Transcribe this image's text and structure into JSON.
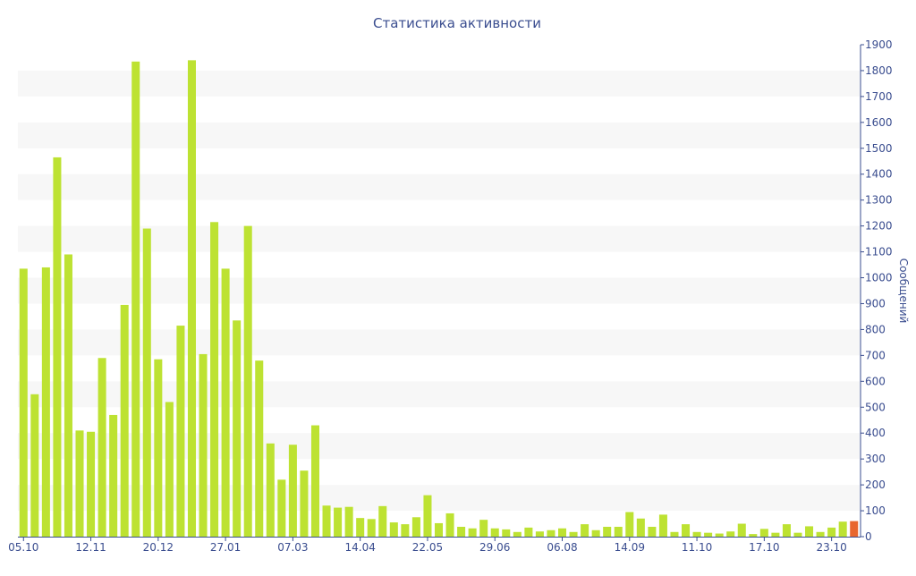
{
  "chart_data": {
    "type": "bar",
    "title": "Статистика активности",
    "xlabel": "",
    "ylabel": "Сообщений",
    "ylim": [
      0,
      1900
    ],
    "y_axis_side": "right",
    "y_ticks": [
      0,
      100,
      200,
      300,
      400,
      500,
      600,
      700,
      800,
      900,
      1000,
      1100,
      1200,
      1300,
      1400,
      1500,
      1600,
      1700,
      1800,
      1900
    ],
    "x_tick_labels": [
      {
        "label": "05.10",
        "index": 0
      },
      {
        "label": "12.11",
        "index": 6
      },
      {
        "label": "20.12",
        "index": 12
      },
      {
        "label": "27.01",
        "index": 18
      },
      {
        "label": "07.03",
        "index": 24
      },
      {
        "label": "14.04",
        "index": 30
      },
      {
        "label": "22.05",
        "index": 36
      },
      {
        "label": "29.06",
        "index": 42
      },
      {
        "label": "06.08",
        "index": 48
      },
      {
        "label": "14.09",
        "index": 54
      },
      {
        "label": "11.10",
        "index": 60
      },
      {
        "label": "17.10",
        "index": 66
      },
      {
        "label": "23.10",
        "index": 72
      }
    ],
    "grid": "alternating horizontal bands",
    "legend": "none",
    "bar_color": "#bde232",
    "highlight_color": "#e8662e",
    "highlight_index": 74,
    "values": [
      1035,
      550,
      1040,
      1465,
      1090,
      410,
      405,
      690,
      470,
      895,
      1835,
      1190,
      685,
      520,
      815,
      1840,
      705,
      1215,
      1035,
      835,
      1200,
      680,
      360,
      220,
      355,
      255,
      430,
      120,
      112,
      115,
      72,
      68,
      118,
      55,
      48,
      75,
      160,
      52,
      90,
      38,
      32,
      65,
      32,
      28,
      18,
      35,
      20,
      25,
      32,
      18,
      48,
      25,
      38,
      38,
      95,
      70,
      38,
      85,
      18,
      48,
      18,
      15,
      12,
      20,
      50,
      10,
      30,
      15,
      48,
      15,
      40,
      18,
      35,
      58,
      60
    ]
  }
}
